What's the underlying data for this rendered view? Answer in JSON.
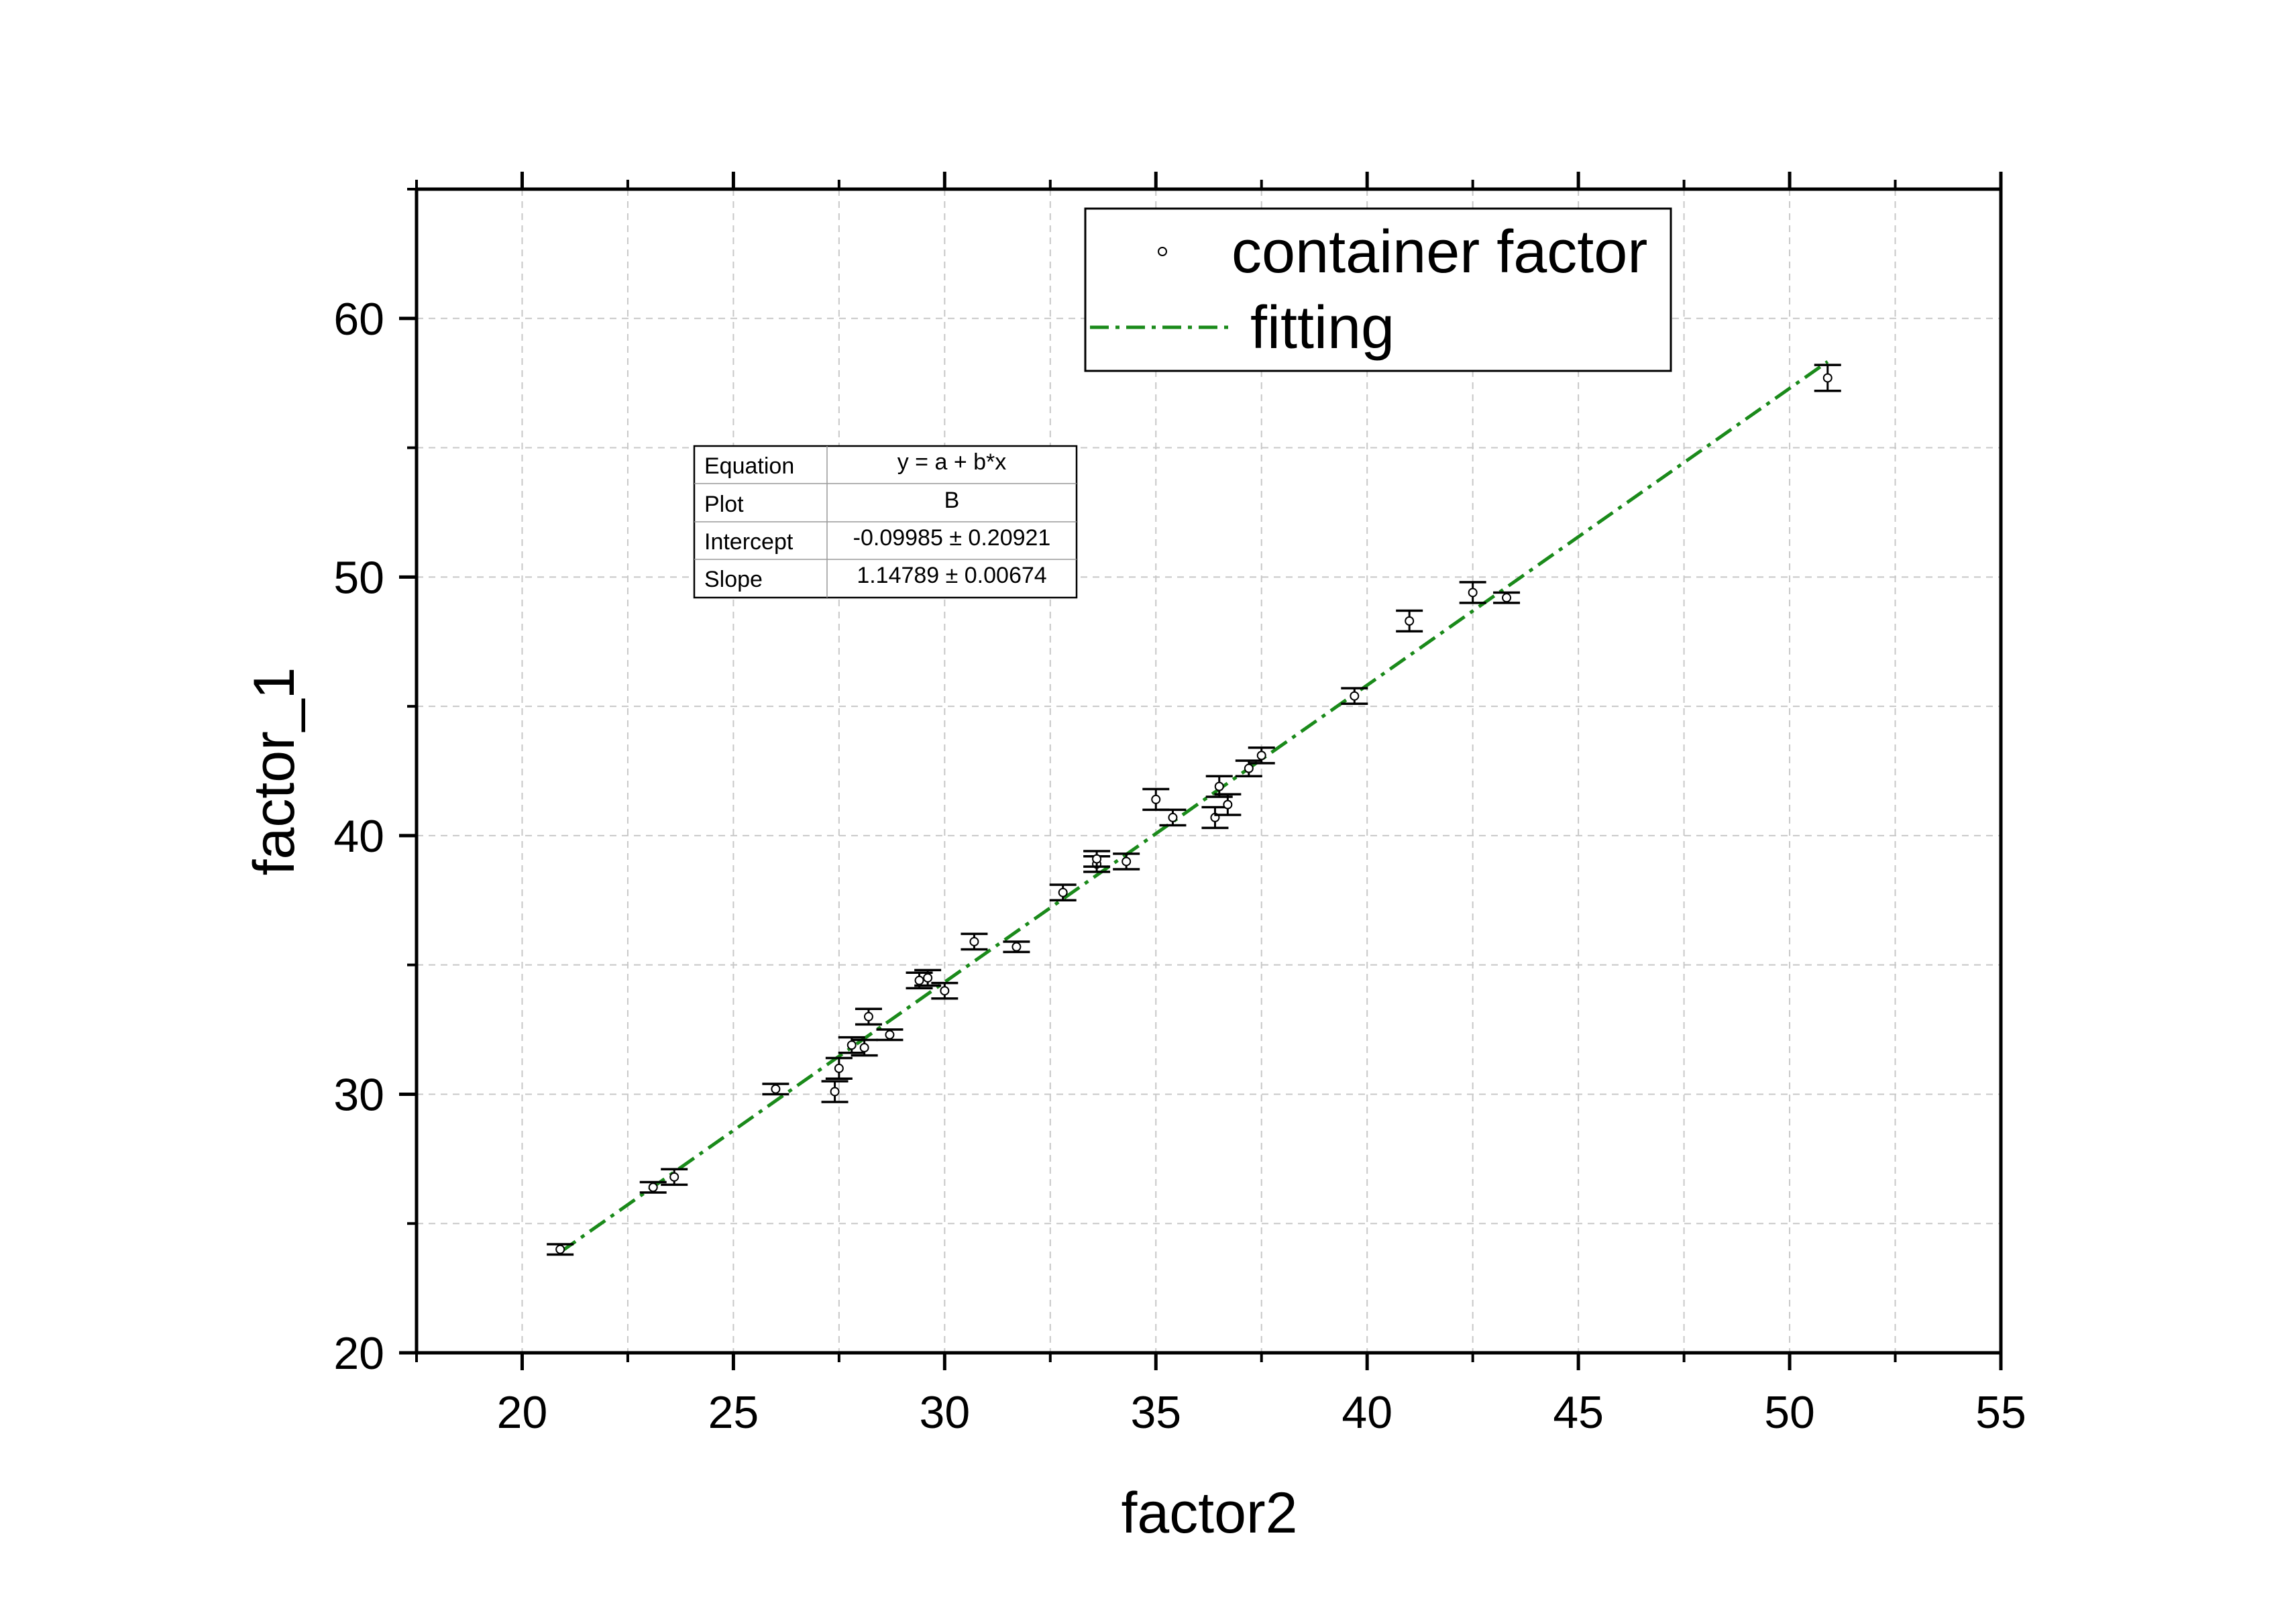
{
  "chart_data": {
    "type": "scatter",
    "xlabel": "factor2",
    "ylabel": "factor_1",
    "xlim": [
      17.5,
      55
    ],
    "ylim": [
      20,
      65
    ],
    "x_ticks": [
      "20",
      "25",
      "30",
      "35",
      "40",
      "45",
      "50",
      "55"
    ],
    "y_ticks": [
      "20",
      "30",
      "40",
      "50",
      "60"
    ],
    "grid": true,
    "legend": {
      "placement": "top-right",
      "entries": [
        "container factor",
        "fitting"
      ]
    },
    "series": [
      {
        "name": "container factor",
        "kind": "points-with-error-bars",
        "color": "#000000",
        "points": [
          {
            "x": 20.9,
            "y": 24.0,
            "err": 0.2
          },
          {
            "x": 23.1,
            "y": 26.4,
            "err": 0.2
          },
          {
            "x": 23.6,
            "y": 26.8,
            "err": 0.3
          },
          {
            "x": 26.0,
            "y": 30.2,
            "err": 0.2
          },
          {
            "x": 27.4,
            "y": 30.1,
            "err": 0.4
          },
          {
            "x": 27.5,
            "y": 31.0,
            "err": 0.4
          },
          {
            "x": 27.8,
            "y": 31.9,
            "err": 0.3
          },
          {
            "x": 28.1,
            "y": 31.8,
            "err": 0.3
          },
          {
            "x": 28.2,
            "y": 33.0,
            "err": 0.3
          },
          {
            "x": 28.7,
            "y": 32.3,
            "err": 0.2
          },
          {
            "x": 29.4,
            "y": 34.4,
            "err": 0.3
          },
          {
            "x": 29.6,
            "y": 34.5,
            "err": 0.3
          },
          {
            "x": 30.0,
            "y": 34.0,
            "err": 0.3
          },
          {
            "x": 30.7,
            "y": 35.9,
            "err": 0.3
          },
          {
            "x": 31.7,
            "y": 35.7,
            "err": 0.2
          },
          {
            "x": 32.8,
            "y": 37.8,
            "err": 0.3
          },
          {
            "x": 33.6,
            "y": 38.9,
            "err": 0.3
          },
          {
            "x": 33.6,
            "y": 39.1,
            "err": 0.3
          },
          {
            "x": 34.3,
            "y": 39.0,
            "err": 0.3
          },
          {
            "x": 35.0,
            "y": 41.4,
            "err": 0.4
          },
          {
            "x": 35.4,
            "y": 40.7,
            "err": 0.3
          },
          {
            "x": 36.4,
            "y": 40.7,
            "err": 0.4
          },
          {
            "x": 36.5,
            "y": 41.9,
            "err": 0.4
          },
          {
            "x": 36.7,
            "y": 41.2,
            "err": 0.4
          },
          {
            "x": 37.2,
            "y": 42.6,
            "err": 0.3
          },
          {
            "x": 37.5,
            "y": 43.1,
            "err": 0.3
          },
          {
            "x": 39.7,
            "y": 45.4,
            "err": 0.3
          },
          {
            "x": 41.0,
            "y": 48.3,
            "err": 0.4
          },
          {
            "x": 42.5,
            "y": 49.4,
            "err": 0.4
          },
          {
            "x": 43.3,
            "y": 49.2,
            "err": 0.2
          },
          {
            "x": 50.9,
            "y": 57.7,
            "err": 0.5
          }
        ]
      },
      {
        "name": "fitting",
        "kind": "line",
        "style": "dash-dot",
        "color": "#1a8a1a",
        "x": [
          20.9,
          50.9
        ],
        "y": [
          23.89,
          58.33
        ]
      }
    ],
    "stats_table": [
      {
        "label": "Equation",
        "value": "y = a + b*x"
      },
      {
        "label": "Plot",
        "value": "B"
      },
      {
        "label": "Intercept",
        "value": "-0.09985 ± 0.20921"
      },
      {
        "label": "Slope",
        "value": "1.14789 ± 0.00674"
      }
    ]
  }
}
